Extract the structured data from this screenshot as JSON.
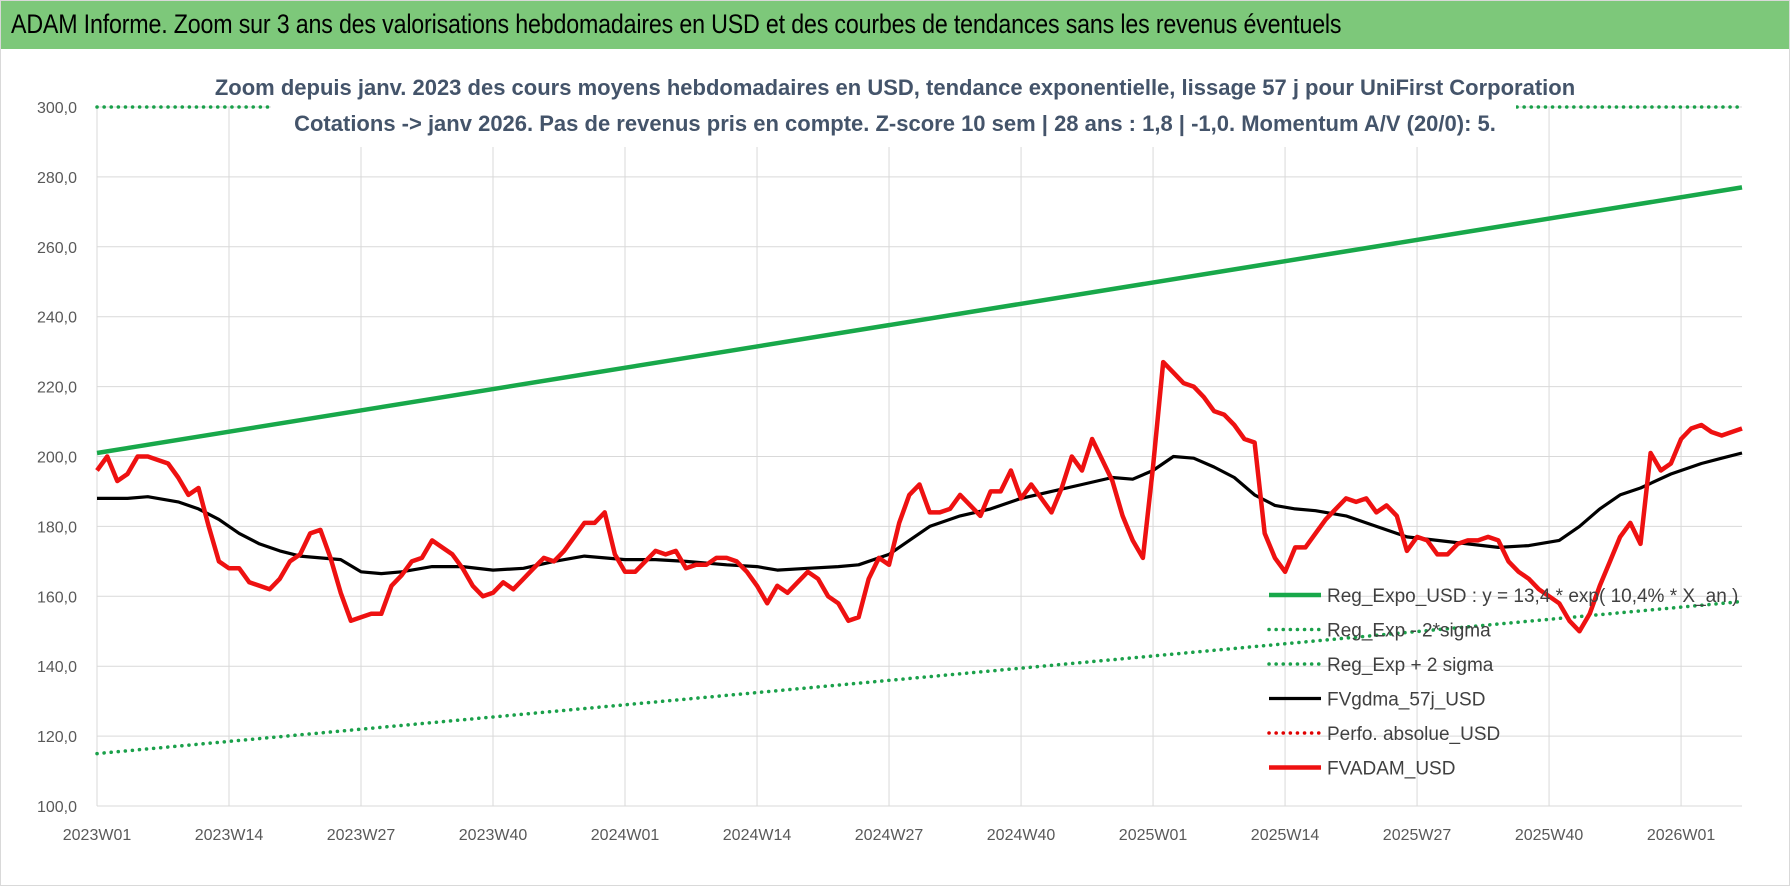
{
  "header": {
    "title": "ADAM Informe. Zoom sur 3 ans des valorisations hebdomadaires en USD et des courbes de tendances sans les revenus éventuels"
  },
  "colors": {
    "banner": "#7dc87a",
    "trend": "#18a84a",
    "band": "#1aa04a",
    "gdma": "#000000",
    "perf": "#e00000",
    "adam": "#ee1111",
    "grid": "#d9d9d9"
  },
  "chart_data": {
    "type": "line",
    "title": [
      "Zoom depuis janv. 2023 des cours moyens hebdomadaires en USD, tendance exponentielle, lissage 57 j pour UniFirst Corporation",
      "Cotations -> janv 2026. Pas de revenus pris en compte. Z-score 10 sem | 28 ans : 1,8 | -1,0. Momentum A/V (20/0): 5."
    ],
    "ylim": [
      100,
      300
    ],
    "ytick_values": [
      100,
      120,
      140,
      160,
      180,
      200,
      220,
      240,
      260,
      280,
      300
    ],
    "ytick_labels": [
      "100,0",
      "120,0",
      "140,0",
      "160,0",
      "180,0",
      "200,0",
      "220,0",
      "240,0",
      "260,0",
      "280,0",
      "300,0"
    ],
    "x_count": 163,
    "xtick_indices": [
      0,
      13,
      26,
      39,
      52,
      65,
      78,
      91,
      104,
      117,
      130,
      143,
      156
    ],
    "xtick_labels": [
      "2023W01",
      "2023W14",
      "2023W27",
      "2023W40",
      "2024W01",
      "2024W14",
      "2024W27",
      "2024W40",
      "2025W01",
      "2025W14",
      "2025W27",
      "2025W40",
      "2026W01"
    ],
    "series": [
      {
        "name": "Reg_Expo_USD : y = 13,4 * exp( 10,4% * X_an )",
        "style": "thick-solid",
        "color": "#18a84a",
        "x": [
          0,
          162
        ],
        "values": [
          201.0,
          277.0
        ]
      },
      {
        "name": "Reg_Exp - 2*sigma",
        "style": "dotted",
        "color": "#1aa04a",
        "x": [
          0,
          162
        ],
        "values": [
          115.0,
          158.5
        ]
      },
      {
        "name": "Reg_Exp + 2 sigma",
        "style": "dotted",
        "color": "#1aa04a",
        "x": [
          0,
          162
        ],
        "values": [
          300.0,
          300.0
        ]
      },
      {
        "name": "FVgdma_57j_USD",
        "style": "solid",
        "color": "#000000",
        "x": [
          0,
          3,
          5,
          8,
          10,
          12,
          14,
          16,
          18,
          20,
          22,
          24,
          26,
          28,
          30,
          33,
          36,
          39,
          42,
          45,
          48,
          52,
          55,
          58,
          62,
          65,
          67,
          70,
          73,
          75,
          78,
          80,
          82,
          85,
          88,
          91,
          94,
          97,
          100,
          102,
          104,
          106,
          108,
          110,
          112,
          114,
          116,
          118,
          120,
          123,
          126,
          129,
          132,
          135,
          138,
          141,
          144,
          146,
          148,
          150,
          152,
          155,
          158,
          160,
          162
        ],
        "values": [
          188,
          188,
          188.5,
          187,
          185,
          182,
          178,
          175,
          173,
          171.5,
          171,
          170.5,
          167,
          166.5,
          167,
          168.5,
          168.5,
          167.5,
          168,
          170,
          171.5,
          170.5,
          170.5,
          170,
          169,
          168.5,
          167.5,
          168,
          168.5,
          169,
          172,
          176,
          180,
          183,
          185,
          188,
          190,
          192,
          194,
          193.5,
          196,
          200,
          199.5,
          197,
          194,
          189,
          186,
          185,
          184.5,
          183,
          180,
          177,
          176,
          175,
          174,
          174.5,
          176,
          180,
          185,
          189,
          191,
          195,
          198,
          199.5,
          201
        ]
      },
      {
        "name": "Perfo. absolue_USD",
        "style": "dotted",
        "color": "#e00000",
        "x": [],
        "values": []
      },
      {
        "name": "FVADAM_USD",
        "style": "thick-solid",
        "color": "#ee1111",
        "x": [
          0,
          1,
          2,
          3,
          4,
          5,
          6,
          7,
          8,
          9,
          10,
          11,
          12,
          13,
          14,
          15,
          16,
          17,
          18,
          19,
          20,
          21,
          22,
          23,
          24,
          25,
          26,
          27,
          28,
          29,
          30,
          31,
          32,
          33,
          34,
          35,
          36,
          37,
          38,
          39,
          40,
          41,
          42,
          43,
          44,
          45,
          46,
          47,
          48,
          49,
          50,
          51,
          52,
          53,
          54,
          55,
          56,
          57,
          58,
          59,
          60,
          61,
          62,
          63,
          64,
          65,
          66,
          67,
          68,
          69,
          70,
          71,
          72,
          73,
          74,
          75,
          76,
          77,
          78,
          79,
          80,
          81,
          82,
          83,
          84,
          85,
          86,
          87,
          88,
          89,
          90,
          91,
          92,
          93,
          94,
          95,
          96,
          97,
          98,
          99,
          100,
          101,
          102,
          103,
          104,
          105,
          106,
          107,
          108,
          109,
          110,
          111,
          112,
          113,
          114,
          115,
          116,
          117,
          118,
          119,
          120,
          121,
          122,
          123,
          124,
          125,
          126,
          127,
          128,
          129,
          130,
          131,
          132,
          133,
          134,
          135,
          136,
          137,
          138,
          139,
          140,
          141,
          142,
          143,
          144,
          145,
          146,
          147,
          148,
          149,
          150,
          151,
          152,
          153,
          154,
          155,
          156,
          157,
          158,
          159,
          160,
          161,
          162
        ],
        "values": [
          196,
          200,
          193,
          195,
          200,
          200,
          199,
          198,
          194,
          189,
          191,
          180,
          170,
          168,
          168,
          164,
          163,
          162,
          165,
          170,
          172,
          178,
          179,
          171,
          161,
          153,
          154,
          155,
          155,
          163,
          166,
          170,
          171,
          176,
          174,
          172,
          168,
          163,
          160,
          161,
          164,
          162,
          165,
          168,
          171,
          170,
          173,
          177,
          181,
          181,
          184,
          172,
          167,
          167,
          170,
          173,
          172,
          173,
          168,
          169,
          169,
          171,
          171,
          170,
          167,
          163,
          158,
          163,
          161,
          164,
          167,
          165,
          160,
          158,
          153,
          154,
          165,
          171,
          169,
          181,
          189,
          192,
          184,
          184,
          185,
          189,
          186,
          183,
          190,
          190,
          196,
          188,
          192,
          188,
          184,
          191,
          200,
          196,
          205,
          199,
          193,
          183,
          176,
          171,
          197,
          227,
          224,
          221,
          220,
          217,
          213,
          212,
          209,
          205,
          204,
          178,
          171,
          167,
          174,
          174,
          178,
          182,
          185,
          188,
          187,
          188,
          184,
          186,
          183,
          173,
          177,
          176,
          172,
          172,
          175,
          176,
          176,
          177,
          176,
          170,
          167,
          165,
          162,
          160,
          158,
          153,
          150,
          155,
          163,
          170,
          177,
          181,
          175,
          201,
          196,
          198,
          205,
          208,
          209,
          207,
          206,
          207,
          208
        ]
      }
    ],
    "legend_position": "bottom-right"
  }
}
